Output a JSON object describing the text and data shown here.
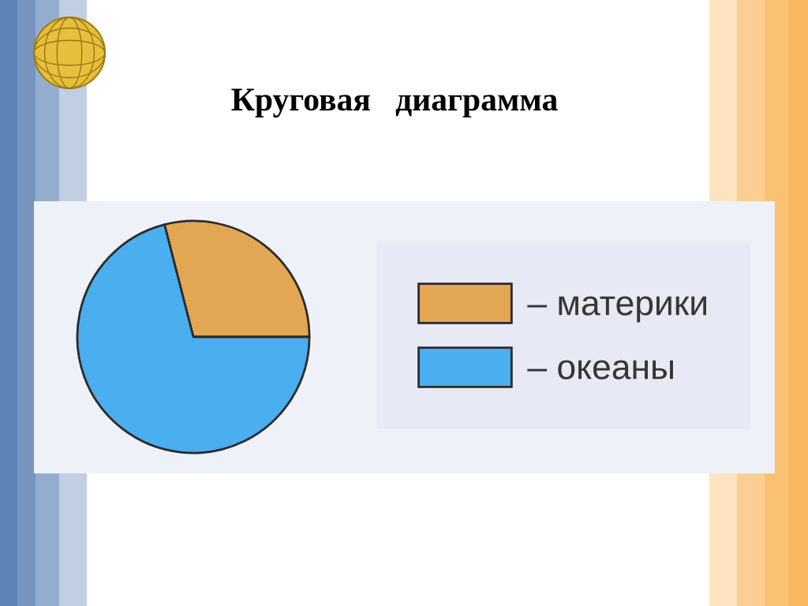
{
  "chart_data": {
    "type": "pie",
    "title": "Круговая   диаграмма",
    "categories": [
      "– материки",
      "– океаны"
    ],
    "values": [
      29,
      71
    ],
    "colors": [
      "#e3a653",
      "#4aaeef"
    ],
    "legend": "right"
  }
}
